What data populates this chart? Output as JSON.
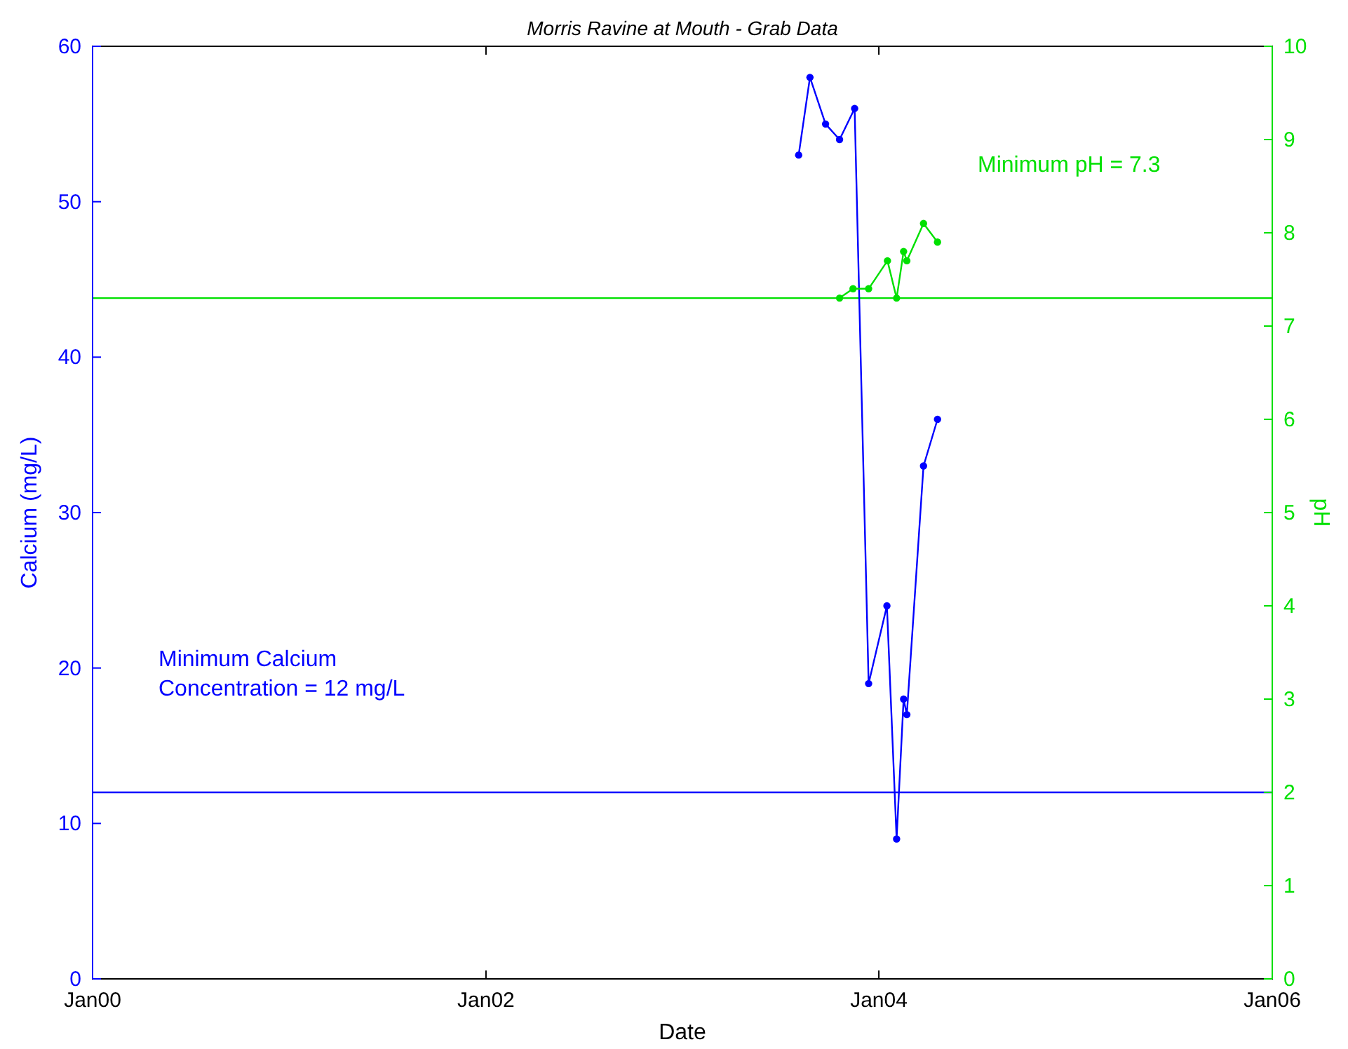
{
  "chart_data": {
    "type": "line",
    "title": "Morris Ravine at Mouth - Grab Data",
    "xlabel": "Date",
    "ylabel": "Calcium (mg/L)",
    "y2label": "pH",
    "xlim": [
      "2000-01-01",
      "2006-01-01"
    ],
    "xticks": [
      {
        "value": "2000-01-01",
        "label": "Jan00"
      },
      {
        "value": "2002-01-01",
        "label": "Jan02"
      },
      {
        "value": "2004-01-01",
        "label": "Jan04"
      },
      {
        "value": "2006-01-01",
        "label": "Jan06"
      }
    ],
    "ylim": [
      0,
      60
    ],
    "yticks": [
      0,
      10,
      20,
      30,
      40,
      50,
      60
    ],
    "y2lim": [
      0,
      10
    ],
    "y2ticks": [
      0,
      1,
      2,
      3,
      4,
      5,
      6,
      7,
      8,
      9,
      10
    ],
    "marker": "circle",
    "line_style": "solid",
    "grid": false,
    "series": [
      {
        "color": "#0000ff",
        "x": [
          "2003-08-05",
          "2003-08-26",
          "2003-09-24",
          "2003-10-20",
          "2003-11-17",
          "2003-12-13",
          "2004-01-16",
          "2004-02-03",
          "2004-02-16",
          "2004-02-22",
          "2004-03-24",
          "2004-04-19"
        ],
        "values": [
          53,
          58,
          55,
          54,
          56,
          19,
          24,
          9,
          18,
          17,
          33,
          36
        ]
      },
      {
        "color": "#00e000",
        "axis": "y2",
        "x": [
          "2003-10-20",
          "2003-11-14",
          "2003-12-13",
          "2004-01-17",
          "2004-02-03",
          "2004-02-16",
          "2004-02-22",
          "2004-03-24",
          "2004-04-19"
        ],
        "values": [
          7.3,
          7.4,
          7.4,
          7.7,
          7.3,
          7.8,
          7.7,
          8.1,
          7.9
        ]
      }
    ],
    "ref_lines": [
      {
        "axis": "y",
        "value": 12,
        "label": "Minimum Calcium\nConcentration = 12 mg/L",
        "color": "#0000ff"
      },
      {
        "axis": "y2",
        "value": 7.3,
        "label": "Minimum pH = 7.3",
        "color": "#00e000"
      }
    ]
  }
}
